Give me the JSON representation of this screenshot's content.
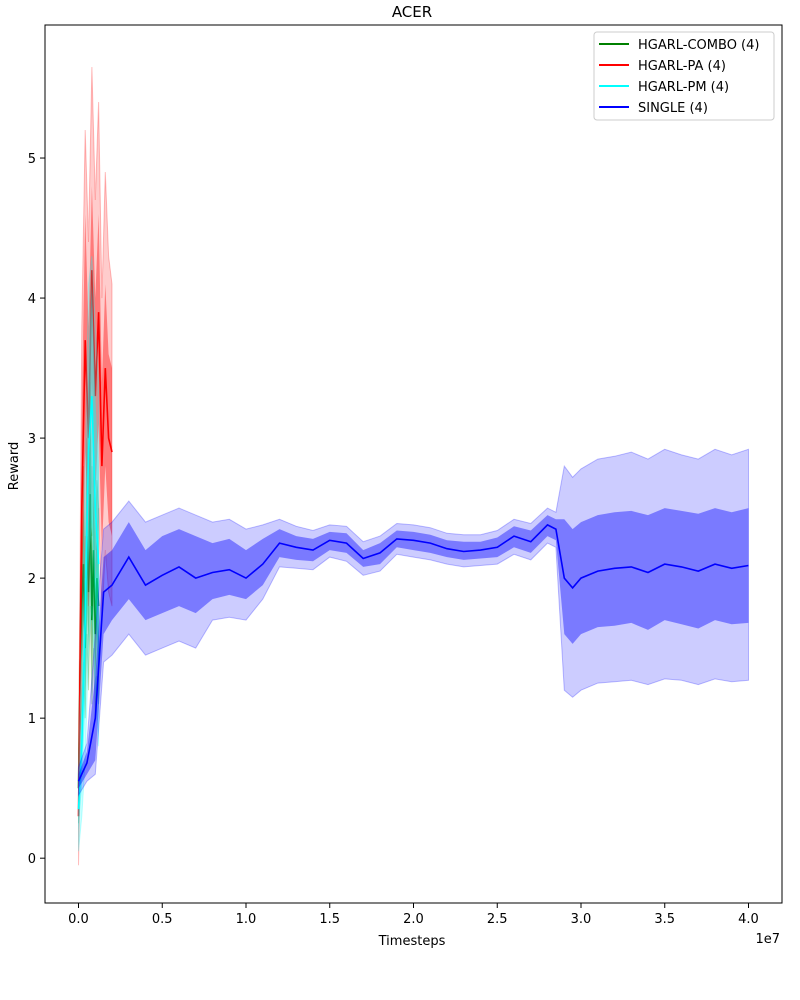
{
  "chart_data": {
    "type": "line",
    "title": "ACER",
    "xlabel": "Timesteps",
    "ylabel": "Reward",
    "x_offset_label": "1e7",
    "xlim": [
      -0.2,
      4.2
    ],
    "ylim": [
      -0.32,
      5.95
    ],
    "x_ticks": [
      0.0,
      0.5,
      1.0,
      1.5,
      2.0,
      2.5,
      3.0,
      3.5,
      4.0
    ],
    "x_tick_labels": [
      "0.0",
      "0.5",
      "1.0",
      "1.5",
      "2.0",
      "2.5",
      "3.0",
      "3.5",
      "4.0"
    ],
    "y_ticks": [
      0,
      1,
      2,
      3,
      4,
      5
    ],
    "y_tick_labels": [
      "0",
      "1",
      "2",
      "3",
      "4",
      "5"
    ],
    "legend_position": "top-right",
    "series": [
      {
        "name": "HGARL-COMBO (4)",
        "color": "#008000",
        "x": [
          0.0,
          0.01,
          0.02,
          0.03,
          0.04,
          0.05,
          0.06,
          0.07,
          0.08,
          0.09,
          0.1,
          0.11,
          0.12
        ],
        "y": [
          0.5,
          1.4,
          1.8,
          2.1,
          1.5,
          2.3,
          1.9,
          2.6,
          1.7,
          2.2,
          1.6,
          2.0,
          1.8
        ],
        "inner_band": [
          [
            0.35,
            0.65
          ],
          [
            1.1,
            1.7
          ],
          [
            1.4,
            2.2
          ],
          [
            1.7,
            2.5
          ],
          [
            1.2,
            1.8
          ],
          [
            1.9,
            2.7
          ],
          [
            1.5,
            2.3
          ],
          [
            2.1,
            3.1
          ],
          [
            1.3,
            2.1
          ],
          [
            1.8,
            2.6
          ],
          [
            1.3,
            1.9
          ],
          [
            1.6,
            2.4
          ],
          [
            1.4,
            2.2
          ]
        ],
        "outer_band": [
          [
            0.25,
            0.75
          ],
          [
            0.9,
            1.9
          ],
          [
            1.1,
            2.5
          ],
          [
            1.4,
            2.8
          ],
          [
            1.0,
            2.0
          ],
          [
            1.6,
            3.0
          ],
          [
            1.2,
            2.6
          ],
          [
            1.8,
            3.4
          ],
          [
            1.1,
            2.3
          ],
          [
            1.5,
            2.9
          ],
          [
            1.0,
            2.2
          ],
          [
            1.3,
            2.7
          ],
          [
            1.1,
            2.5
          ]
        ]
      },
      {
        "name": "HGARL-PA (4)",
        "color": "#ff0000",
        "x": [
          0.0,
          0.02,
          0.04,
          0.06,
          0.08,
          0.1,
          0.12,
          0.14,
          0.16,
          0.18,
          0.2
        ],
        "y": [
          0.3,
          2.5,
          3.7,
          3.0,
          4.2,
          3.3,
          3.9,
          2.8,
          3.5,
          3.0,
          2.9
        ],
        "inner_band": [
          [
            0.15,
            0.45
          ],
          [
            1.8,
            3.2
          ],
          [
            2.9,
            4.6
          ],
          [
            2.3,
            3.8
          ],
          [
            3.4,
            4.8
          ],
          [
            2.6,
            4.0
          ],
          [
            3.1,
            4.6
          ],
          [
            2.2,
            3.4
          ],
          [
            2.8,
            4.1
          ],
          [
            2.4,
            3.6
          ],
          [
            2.3,
            3.5
          ]
        ],
        "outer_band": [
          [
            -0.05,
            0.6
          ],
          [
            1.3,
            3.8
          ],
          [
            2.3,
            5.2
          ],
          [
            1.8,
            4.4
          ],
          [
            2.8,
            5.65
          ],
          [
            2.0,
            4.7
          ],
          [
            2.5,
            5.4
          ],
          [
            1.7,
            4.0
          ],
          [
            2.2,
            4.9
          ],
          [
            1.9,
            4.3
          ],
          [
            1.8,
            4.1
          ]
        ]
      },
      {
        "name": "HGARL-PM (4)",
        "color": "#00ffff",
        "x": [
          0.0,
          0.02,
          0.04,
          0.06,
          0.08,
          0.1,
          0.12
        ],
        "y": [
          0.35,
          0.8,
          1.7,
          2.9,
          3.3,
          2.5,
          2.1
        ],
        "inner_band": [
          [
            0.2,
            0.5
          ],
          [
            0.5,
            1.2
          ],
          [
            1.1,
            2.3
          ],
          [
            2.1,
            3.6
          ],
          [
            2.4,
            4.1
          ],
          [
            1.8,
            3.3
          ],
          [
            1.4,
            2.8
          ]
        ],
        "outer_band": [
          [
            0.05,
            0.65
          ],
          [
            0.3,
            1.6
          ],
          [
            0.7,
            2.8
          ],
          [
            1.5,
            4.1
          ],
          [
            1.8,
            4.3
          ],
          [
            1.2,
            3.8
          ],
          [
            0.8,
            3.4
          ]
        ]
      },
      {
        "name": "SINGLE (4)",
        "color": "#0000ff",
        "x": [
          0.0,
          0.05,
          0.1,
          0.15,
          0.2,
          0.3,
          0.4,
          0.5,
          0.6,
          0.7,
          0.8,
          0.9,
          1.0,
          1.1,
          1.2,
          1.3,
          1.4,
          1.5,
          1.6,
          1.7,
          1.8,
          1.9,
          2.0,
          2.1,
          2.2,
          2.3,
          2.4,
          2.5,
          2.6,
          2.7,
          2.8,
          2.85,
          2.9,
          2.95,
          3.0,
          3.1,
          3.2,
          3.3,
          3.4,
          3.5,
          3.6,
          3.7,
          3.8,
          3.9,
          4.0
        ],
        "y": [
          0.55,
          0.68,
          1.0,
          1.9,
          1.95,
          2.15,
          1.95,
          2.02,
          2.08,
          2.0,
          2.04,
          2.06,
          2.0,
          2.1,
          2.25,
          2.22,
          2.2,
          2.27,
          2.25,
          2.14,
          2.18,
          2.28,
          2.27,
          2.25,
          2.21,
          2.19,
          2.2,
          2.22,
          2.3,
          2.26,
          2.38,
          2.35,
          2.0,
          1.93,
          2.0,
          2.05,
          2.07,
          2.08,
          2.04,
          2.1,
          2.08,
          2.05,
          2.1,
          2.07,
          2.09
        ],
        "inner_band": [
          [
            0.5,
            0.6
          ],
          [
            0.6,
            0.76
          ],
          [
            0.7,
            1.3
          ],
          [
            1.6,
            2.15
          ],
          [
            1.7,
            2.2
          ],
          [
            1.85,
            2.4
          ],
          [
            1.7,
            2.2
          ],
          [
            1.75,
            2.3
          ],
          [
            1.8,
            2.35
          ],
          [
            1.75,
            2.3
          ],
          [
            1.85,
            2.25
          ],
          [
            1.88,
            2.28
          ],
          [
            1.85,
            2.2
          ],
          [
            1.95,
            2.28
          ],
          [
            2.15,
            2.35
          ],
          [
            2.13,
            2.3
          ],
          [
            2.12,
            2.28
          ],
          [
            2.2,
            2.33
          ],
          [
            2.18,
            2.32
          ],
          [
            2.08,
            2.2
          ],
          [
            2.1,
            2.25
          ],
          [
            2.22,
            2.34
          ],
          [
            2.2,
            2.33
          ],
          [
            2.18,
            2.31
          ],
          [
            2.15,
            2.27
          ],
          [
            2.13,
            2.26
          ],
          [
            2.14,
            2.26
          ],
          [
            2.15,
            2.29
          ],
          [
            2.22,
            2.37
          ],
          [
            2.18,
            2.34
          ],
          [
            2.3,
            2.45
          ],
          [
            2.27,
            2.42
          ],
          [
            1.6,
            2.42
          ],
          [
            1.53,
            2.35
          ],
          [
            1.6,
            2.4
          ],
          [
            1.65,
            2.45
          ],
          [
            1.66,
            2.47
          ],
          [
            1.68,
            2.48
          ],
          [
            1.63,
            2.45
          ],
          [
            1.7,
            2.5
          ],
          [
            1.67,
            2.48
          ],
          [
            1.64,
            2.46
          ],
          [
            1.7,
            2.5
          ],
          [
            1.67,
            2.47
          ],
          [
            1.68,
            2.5
          ]
        ],
        "outer_band": [
          [
            0.45,
            0.65
          ],
          [
            0.55,
            0.82
          ],
          [
            0.6,
            1.6
          ],
          [
            1.4,
            2.35
          ],
          [
            1.45,
            2.4
          ],
          [
            1.6,
            2.55
          ],
          [
            1.45,
            2.4
          ],
          [
            1.5,
            2.45
          ],
          [
            1.55,
            2.5
          ],
          [
            1.5,
            2.45
          ],
          [
            1.7,
            2.4
          ],
          [
            1.72,
            2.42
          ],
          [
            1.7,
            2.35
          ],
          [
            1.85,
            2.38
          ],
          [
            2.08,
            2.42
          ],
          [
            2.07,
            2.37
          ],
          [
            2.06,
            2.34
          ],
          [
            2.15,
            2.38
          ],
          [
            2.12,
            2.37
          ],
          [
            2.02,
            2.26
          ],
          [
            2.05,
            2.3
          ],
          [
            2.17,
            2.39
          ],
          [
            2.15,
            2.38
          ],
          [
            2.13,
            2.36
          ],
          [
            2.1,
            2.32
          ],
          [
            2.08,
            2.31
          ],
          [
            2.09,
            2.31
          ],
          [
            2.1,
            2.34
          ],
          [
            2.17,
            2.42
          ],
          [
            2.13,
            2.39
          ],
          [
            2.25,
            2.5
          ],
          [
            2.22,
            2.47
          ],
          [
            1.2,
            2.8
          ],
          [
            1.15,
            2.72
          ],
          [
            1.2,
            2.78
          ],
          [
            1.25,
            2.85
          ],
          [
            1.26,
            2.87
          ],
          [
            1.27,
            2.9
          ],
          [
            1.24,
            2.85
          ],
          [
            1.28,
            2.92
          ],
          [
            1.27,
            2.88
          ],
          [
            1.24,
            2.85
          ],
          [
            1.28,
            2.92
          ],
          [
            1.26,
            2.88
          ],
          [
            1.27,
            2.92
          ]
        ]
      }
    ]
  }
}
